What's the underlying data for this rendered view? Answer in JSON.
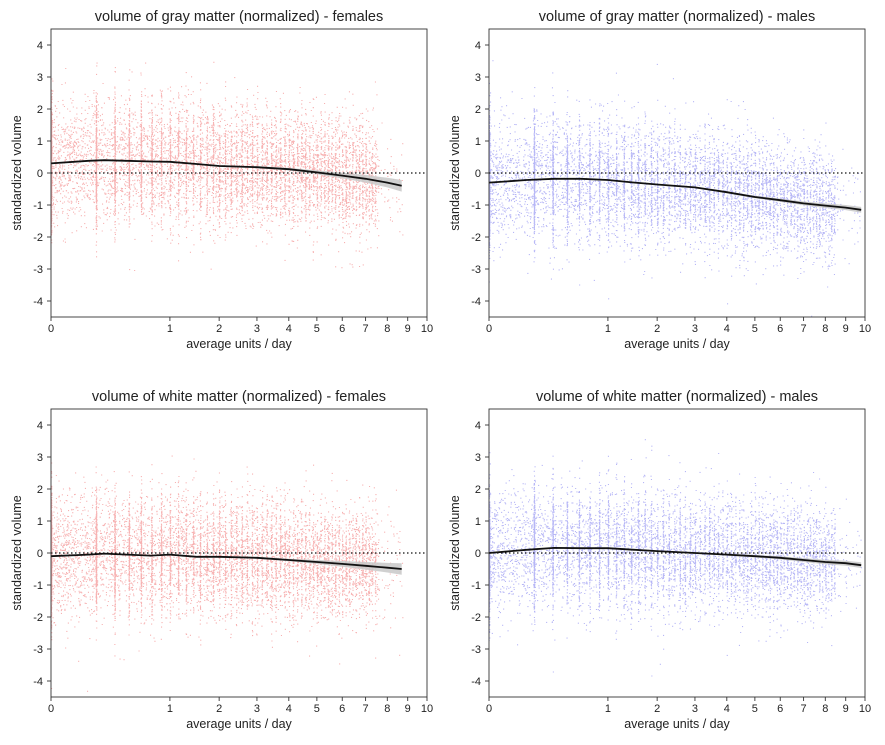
{
  "figure": {
    "colors": {
      "female": "#f07272",
      "male": "#7b7bef",
      "fit": "#111111",
      "band": "#c8c8c8",
      "axis": "#333333"
    }
  },
  "chart_data": [
    {
      "type": "scatter",
      "id": "gray-females",
      "title": "volume of gray matter (normalized) - females",
      "xlabel": "average units / day",
      "ylabel": "standardized volume",
      "xscale": "sqrt",
      "xlim": [
        0,
        10
      ],
      "ylim": [
        -4.5,
        4.5
      ],
      "xticks": [
        0,
        1,
        2,
        3,
        4,
        5,
        6,
        7,
        8,
        9,
        10
      ],
      "yticks": [
        -4,
        -3,
        -2,
        -1,
        0,
        1,
        2,
        3,
        4
      ],
      "reference_line": 0,
      "series": [
        {
          "name": "participants",
          "color": "female",
          "n_points": 9000,
          "x_max": 8.7,
          "y_sd": 1.0,
          "center_from_fit": true
        },
        {
          "name": "smoothed mean",
          "color": "fit",
          "kind": "line",
          "x": [
            0,
            0.1,
            0.2,
            0.4,
            0.7,
            1,
            1.5,
            2,
            3,
            4,
            5,
            6,
            7,
            8,
            8.7
          ],
          "y": [
            0.3,
            0.38,
            0.4,
            0.38,
            0.36,
            0.35,
            0.28,
            0.22,
            0.18,
            0.12,
            0.02,
            -0.08,
            -0.18,
            -0.3,
            -0.4
          ],
          "band": [
            0,
            0,
            0,
            0,
            0,
            0,
            0,
            0.02,
            0.03,
            0.04,
            0.06,
            0.09,
            0.12,
            0.15,
            0.18
          ]
        }
      ]
    },
    {
      "type": "scatter",
      "id": "gray-males",
      "title": "volume of gray matter (normalized) - males",
      "xlabel": "average units / day",
      "ylabel": "standardized volume",
      "xscale": "sqrt",
      "xlim": [
        0,
        10
      ],
      "ylim": [
        -4.5,
        4.5
      ],
      "xticks": [
        0,
        1,
        2,
        3,
        4,
        5,
        6,
        7,
        8,
        9,
        10
      ],
      "yticks": [
        -4,
        -3,
        -2,
        -1,
        0,
        1,
        2,
        3,
        4
      ],
      "reference_line": 0,
      "series": [
        {
          "name": "participants",
          "color": "male",
          "n_points": 8000,
          "x_max": 9.8,
          "y_sd": 1.0,
          "center_from_fit": true
        },
        {
          "name": "smoothed mean",
          "color": "fit",
          "kind": "line",
          "x": [
            0,
            0.1,
            0.3,
            0.6,
            1,
            1.5,
            2,
            3,
            4,
            5,
            6,
            7,
            8,
            9,
            9.8
          ],
          "y": [
            -0.3,
            -0.22,
            -0.18,
            -0.18,
            -0.22,
            -0.3,
            -0.36,
            -0.45,
            -0.6,
            -0.75,
            -0.85,
            -0.95,
            -1.02,
            -1.08,
            -1.15
          ],
          "band": [
            0,
            0,
            0,
            0,
            0,
            0,
            0,
            0.02,
            0.03,
            0.04,
            0.05,
            0.06,
            0.07,
            0.08,
            0.09
          ]
        }
      ]
    },
    {
      "type": "scatter",
      "id": "white-females",
      "title": "volume of white matter (normalized) - females",
      "xlabel": "average units / day",
      "ylabel": "standardized volume",
      "xscale": "sqrt",
      "xlim": [
        0,
        10
      ],
      "ylim": [
        -4.5,
        4.5
      ],
      "xticks": [
        0,
        1,
        2,
        3,
        4,
        5,
        6,
        7,
        8,
        9,
        10
      ],
      "yticks": [
        -4,
        -3,
        -2,
        -1,
        0,
        1,
        2,
        3,
        4
      ],
      "reference_line": 0,
      "series": [
        {
          "name": "participants",
          "color": "female",
          "n_points": 9000,
          "x_max": 8.7,
          "y_sd": 1.0,
          "center_from_fit": true
        },
        {
          "name": "smoothed mean",
          "color": "fit",
          "kind": "line",
          "x": [
            0,
            0.1,
            0.2,
            0.4,
            0.7,
            1,
            1.5,
            2,
            3,
            4,
            5,
            6,
            7,
            8,
            8.7
          ],
          "y": [
            -0.1,
            -0.05,
            -0.02,
            -0.05,
            -0.08,
            -0.05,
            -0.12,
            -0.12,
            -0.15,
            -0.22,
            -0.28,
            -0.34,
            -0.4,
            -0.46,
            -0.5
          ],
          "band": [
            0,
            0,
            0,
            0,
            0,
            0,
            0,
            0.02,
            0.03,
            0.04,
            0.06,
            0.09,
            0.12,
            0.15,
            0.18
          ]
        }
      ]
    },
    {
      "type": "scatter",
      "id": "white-males",
      "title": "volume of white matter (normalized) - males",
      "xlabel": "average units / day",
      "ylabel": "standardized volume",
      "xscale": "sqrt",
      "xlim": [
        0,
        10
      ],
      "ylim": [
        -4.5,
        4.5
      ],
      "xticks": [
        0,
        1,
        2,
        3,
        4,
        5,
        6,
        7,
        8,
        9,
        10
      ],
      "yticks": [
        -4,
        -3,
        -2,
        -1,
        0,
        1,
        2,
        3,
        4
      ],
      "reference_line": 0,
      "series": [
        {
          "name": "participants",
          "color": "male",
          "n_points": 8000,
          "x_max": 9.8,
          "y_sd": 1.0,
          "center_from_fit": true
        },
        {
          "name": "smoothed mean",
          "color": "fit",
          "kind": "line",
          "x": [
            0,
            0.1,
            0.3,
            0.6,
            1,
            1.5,
            2,
            3,
            4,
            5,
            6,
            7,
            8,
            9,
            9.8
          ],
          "y": [
            0.0,
            0.1,
            0.16,
            0.15,
            0.15,
            0.1,
            0.06,
            0.0,
            -0.05,
            -0.1,
            -0.15,
            -0.22,
            -0.28,
            -0.32,
            -0.38
          ],
          "band": [
            0,
            0,
            0,
            0,
            0,
            0,
            0,
            0.02,
            0.03,
            0.04,
            0.05,
            0.06,
            0.07,
            0.08,
            0.09
          ]
        }
      ]
    }
  ]
}
